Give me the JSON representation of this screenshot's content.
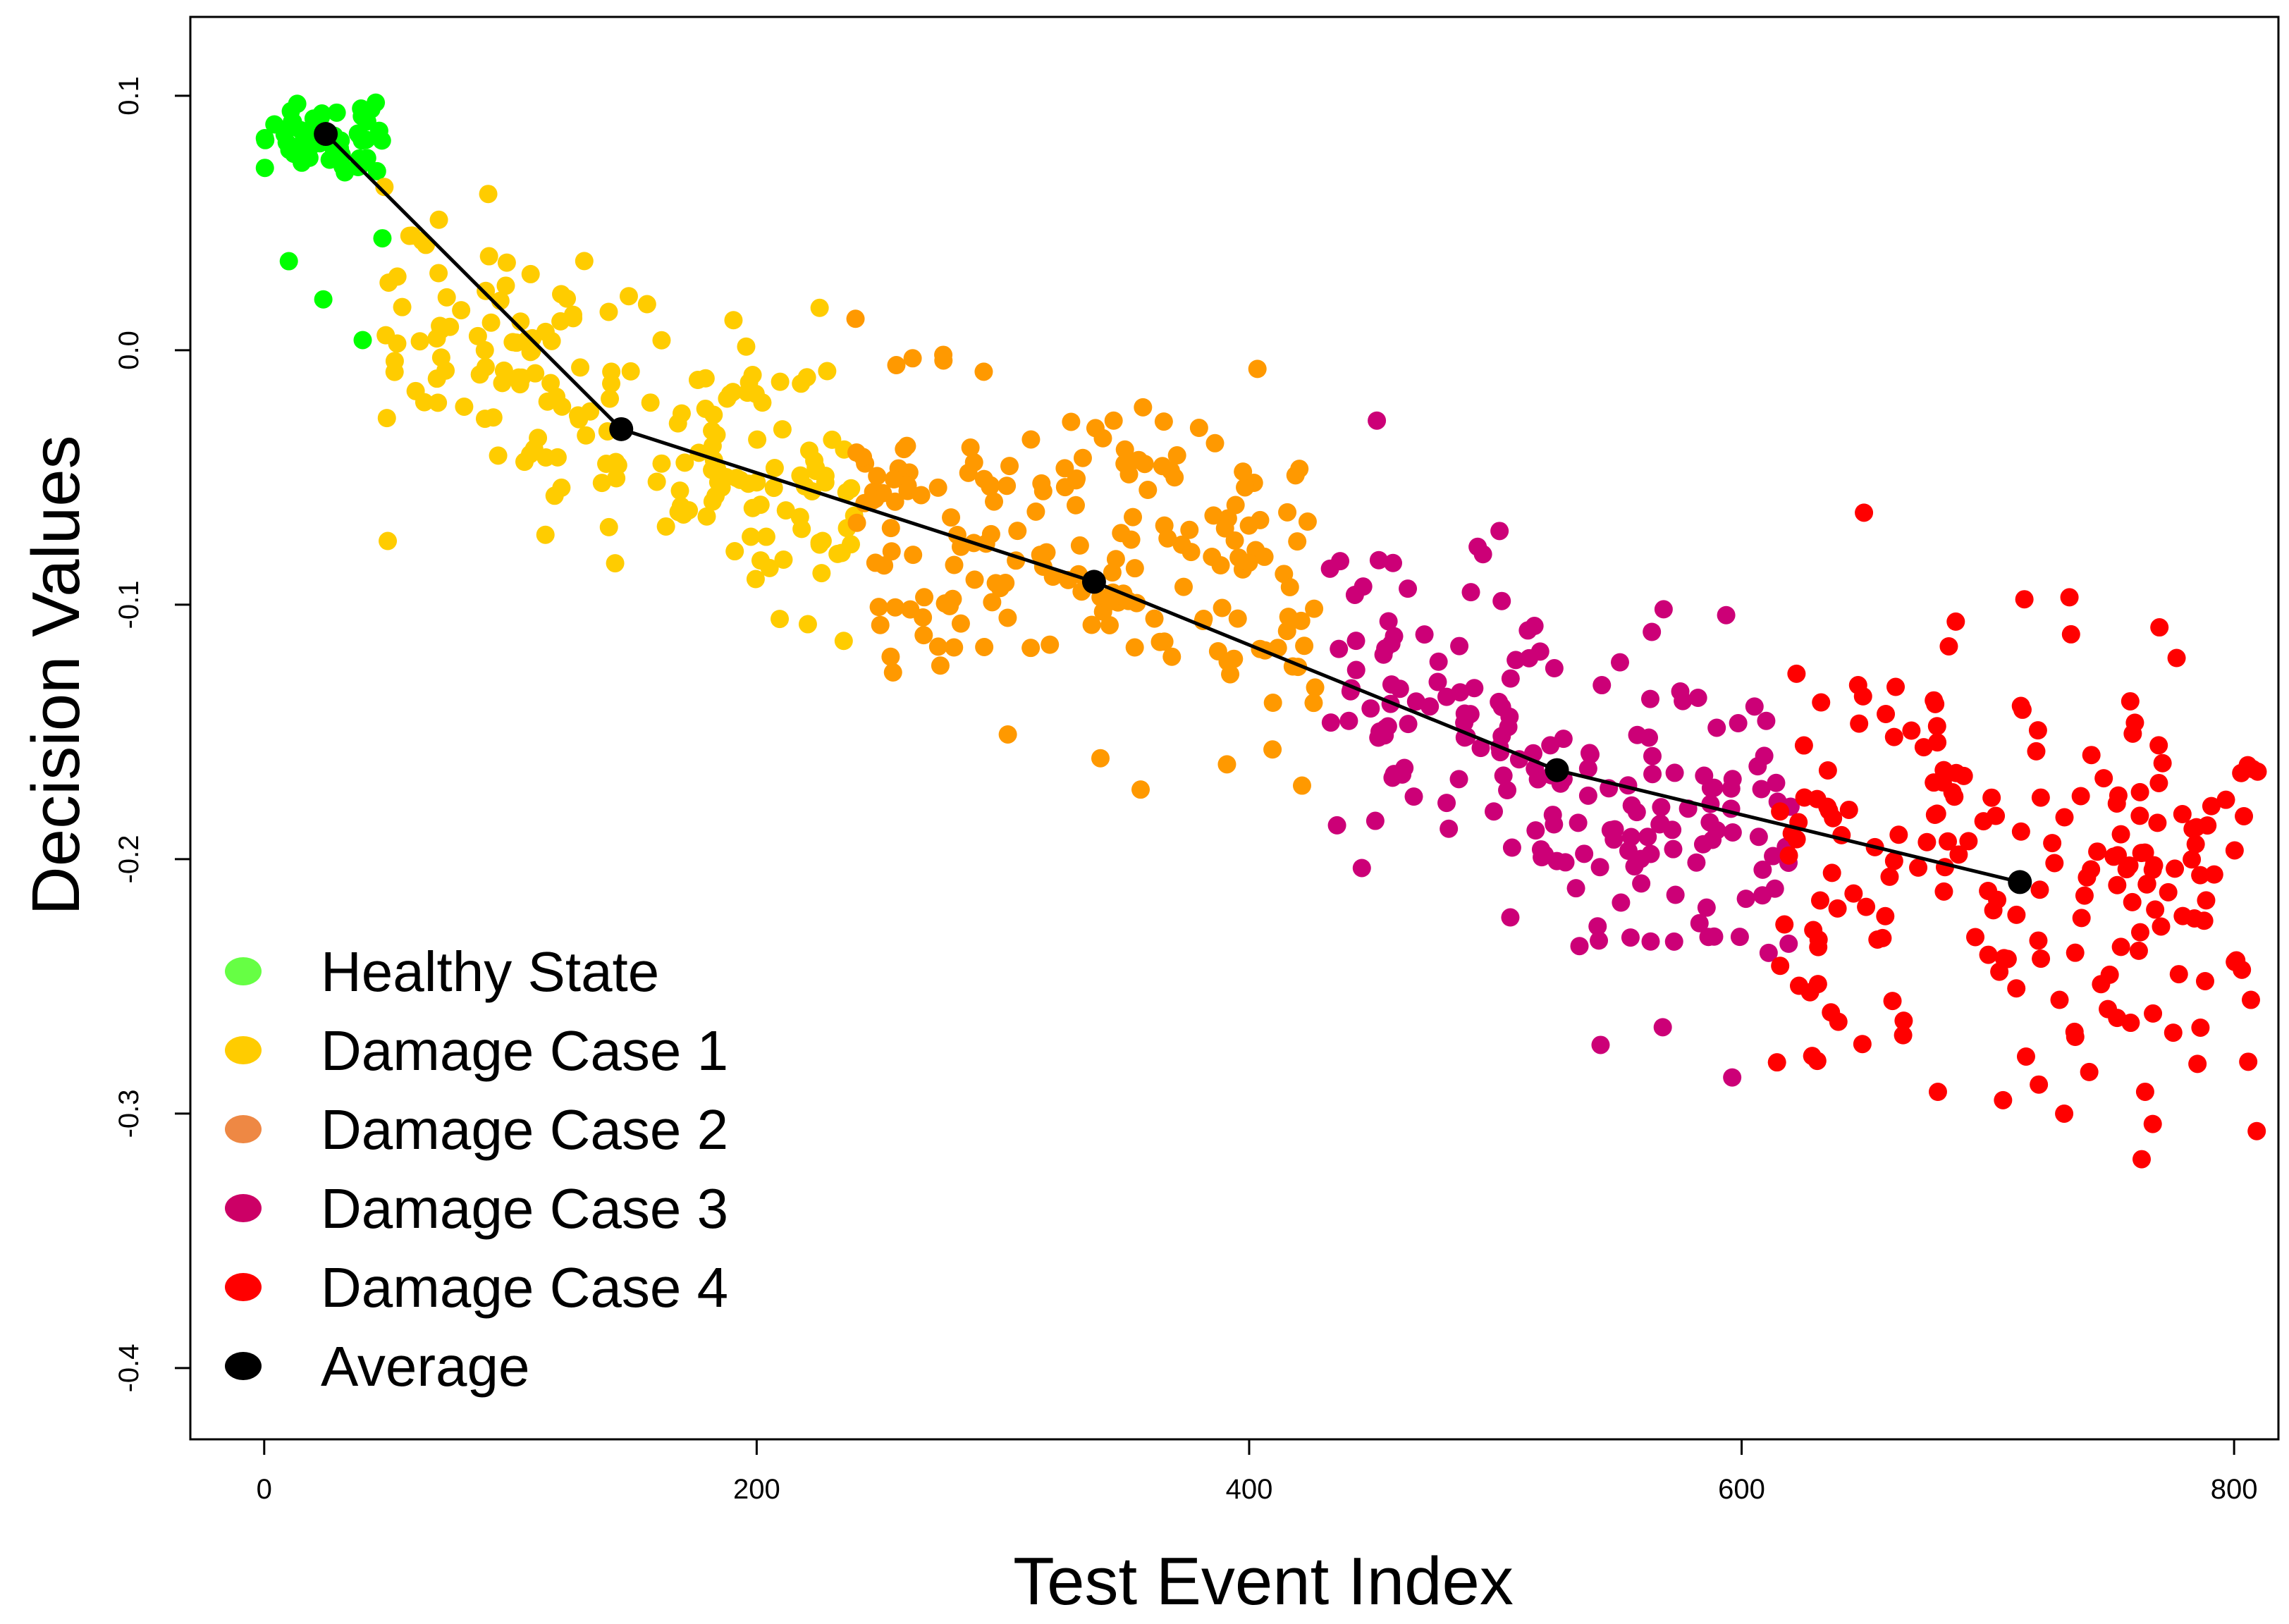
{
  "chart_data": {
    "type": "scatter",
    "title": "",
    "xlabel": "Test Event Index",
    "ylabel": "Decision  Values",
    "xlim": [
      -30,
      818
    ],
    "ylim": [
      -0.428,
      0.131
    ],
    "x_ticks": [
      0,
      200,
      400,
      600,
      800
    ],
    "y_ticks": [
      -0.4,
      -0.3,
      -0.2,
      -0.1,
      0.0,
      0.1
    ],
    "x_tick_labels": [
      "0",
      "200",
      "400",
      "600",
      "800"
    ],
    "y_tick_labels": [
      "-0.4",
      "-0.3",
      "-0.2",
      "-0.1",
      "0.0",
      "0.1"
    ],
    "grid": false,
    "legend_position": "bottom-left",
    "series": [
      {
        "name": "Healthy State",
        "color": "#00ff00",
        "x_range": [
          0,
          48
        ],
        "n": 48,
        "center": 0.086,
        "spread": 0.016,
        "outliers": [
          [
            10,
            0.035
          ],
          [
            24,
            0.02
          ],
          [
            40,
            0.004
          ],
          [
            48,
            0.044
          ]
        ]
      },
      {
        "name": "Damage Case 1",
        "color": "#ffcc00",
        "x_range": [
          48,
          240
        ],
        "n": 190,
        "center_start": 0.012,
        "center_end": -0.06,
        "spread": 0.045
      },
      {
        "name": "Damage Case 2",
        "color": "#ff9900",
        "x_range": [
          240,
          432
        ],
        "n": 190,
        "center_start": -0.07,
        "center_end": -0.095,
        "spread": 0.055
      },
      {
        "name": "Damage Case 3",
        "color": "#cc0077",
        "x_range": [
          432,
          620
        ],
        "n": 190,
        "center_start": -0.13,
        "center_end": -0.2,
        "spread": 0.065
      },
      {
        "name": "Damage Case 4",
        "color": "#ff0000",
        "x_range": [
          614,
          810
        ],
        "n": 195,
        "center_start": -0.2,
        "center_end": -0.215,
        "spread": 0.08
      }
    ],
    "average": {
      "name": "Average",
      "color": "#000000",
      "x": [
        25,
        145,
        337,
        525,
        713
      ],
      "y": [
        0.085,
        -0.031,
        -0.091,
        -0.165,
        -0.209
      ]
    }
  },
  "legend": [
    {
      "label": "Healthy State",
      "color": "#66ff44"
    },
    {
      "label": "Damage Case 1",
      "color": "#ffcc00"
    },
    {
      "label": "Damage Case 2",
      "color": "#ee8844"
    },
    {
      "label": "Damage Case 3",
      "color": "#cc0066"
    },
    {
      "label": "Damage Case 4",
      "color": "#ff0000"
    },
    {
      "label": "Average",
      "color": "#000000"
    }
  ]
}
